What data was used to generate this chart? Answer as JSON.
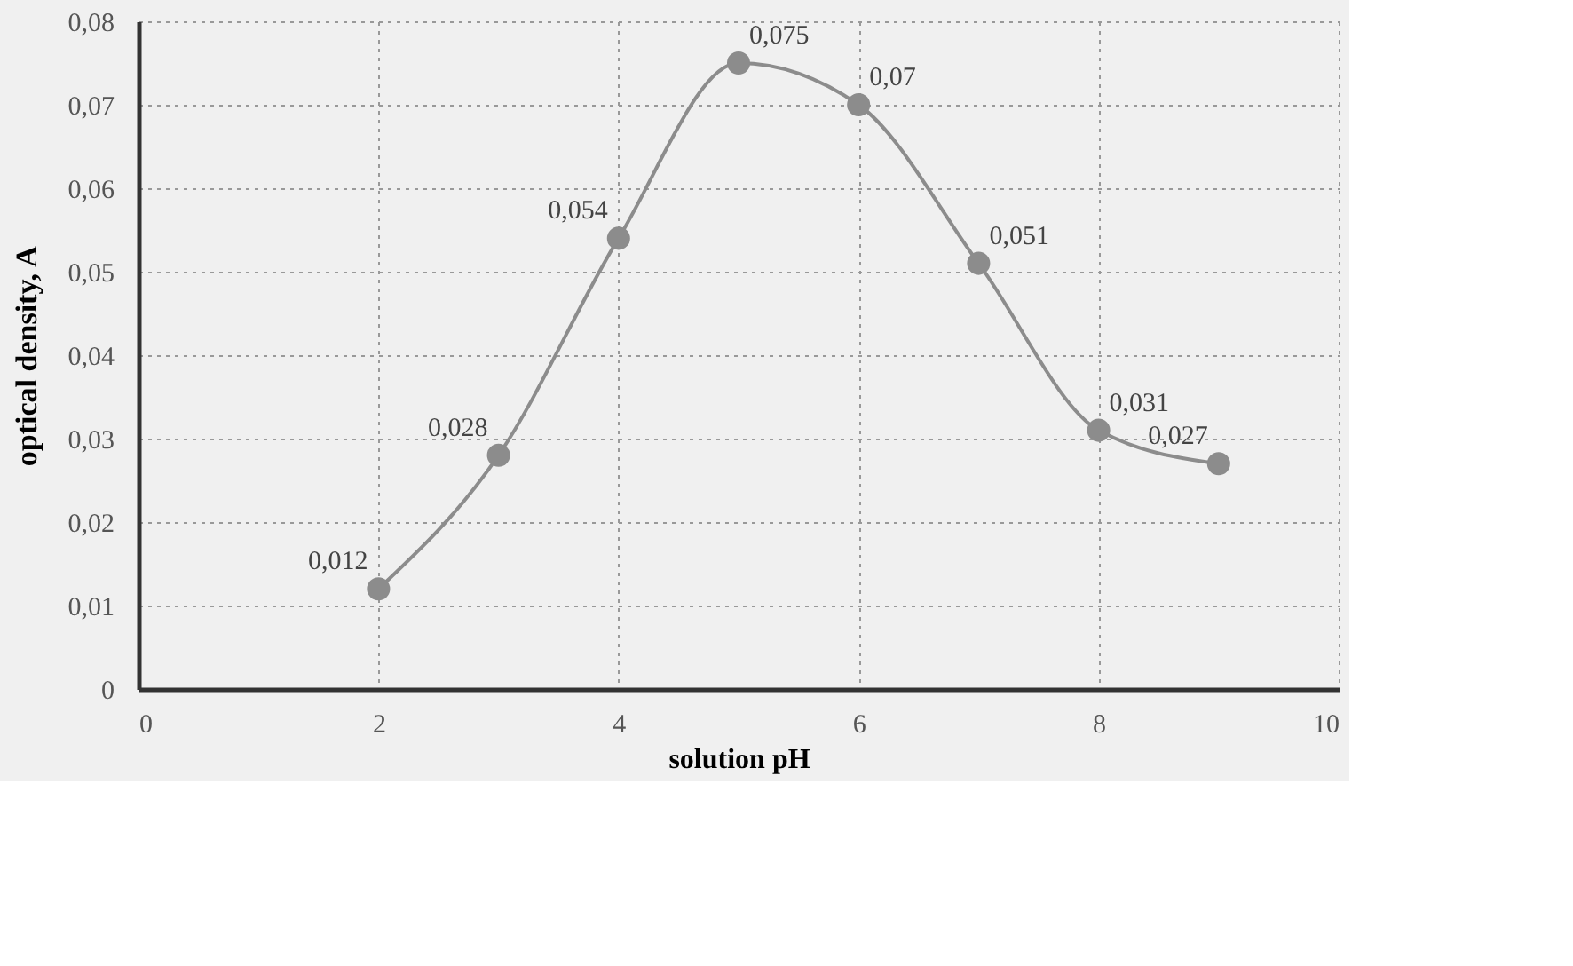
{
  "chart_data": {
    "type": "line",
    "xlabel": "solution pH",
    "ylabel": "optical density, A",
    "x": [
      2,
      3,
      4,
      5,
      6,
      7,
      8,
      9
    ],
    "series": [
      {
        "color": "#8c8c8c",
        "values": [
          0.012,
          0.028,
          0.054,
          0.075,
          0.07,
          0.051,
          0.031,
          0.027
        ],
        "value_labels": [
          "0,012",
          "0,028",
          "0,054",
          "0,075",
          "0,07",
          "0,051",
          "0,031",
          "0,027"
        ]
      }
    ],
    "xlim": [
      0,
      10
    ],
    "xticks": [
      0,
      2,
      4,
      6,
      8,
      10
    ],
    "ylim": [
      0,
      0.08
    ],
    "yticks": [
      0,
      {
        "value": 0.01,
        "label": "0,01"
      },
      {
        "value": 0.02,
        "label": "0,02"
      },
      {
        "value": 0.03,
        "label": "0,03"
      },
      {
        "value": 0.04,
        "label": "0,04"
      },
      {
        "value": 0.05,
        "label": "0,05"
      },
      {
        "value": 0.06,
        "label": "0,06"
      },
      {
        "value": 0.07,
        "label": "0,07"
      },
      {
        "value": 0.08,
        "label": "0,08"
      }
    ],
    "grid": true,
    "marker": "circle",
    "line_style": "solid"
  }
}
